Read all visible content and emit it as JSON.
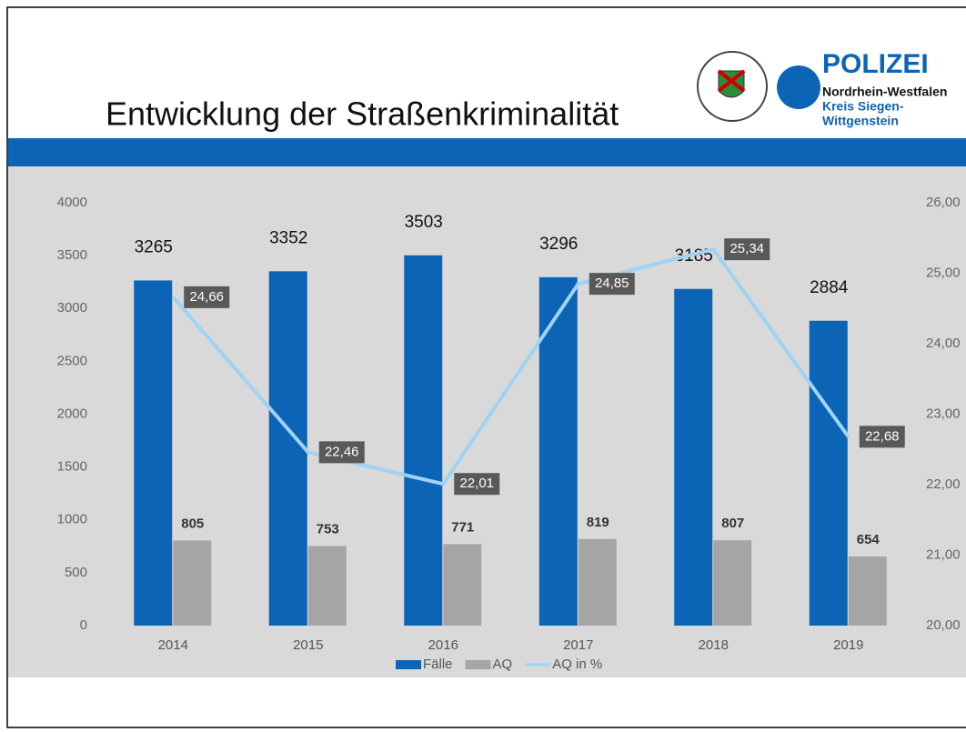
{
  "logo": {
    "name": "POLIZEI",
    "state": "Nordrhein-Westfalen",
    "district1": "Kreis Siegen-",
    "district2": "Wittgenstein"
  },
  "chart_data": {
    "type": "bar",
    "title": "Entwicklung der Straßenkriminalität",
    "categories": [
      "2014",
      "2015",
      "2016",
      "2017",
      "2018",
      "2019"
    ],
    "series": [
      {
        "name": "Fälle",
        "color": "#0b64b5",
        "values": [
          3265,
          3352,
          3503,
          3296,
          3185,
          2884
        ]
      },
      {
        "name": "AQ",
        "color": "#a5a5a5",
        "values": [
          805,
          753,
          771,
          819,
          807,
          654
        ]
      },
      {
        "name": "AQ in %",
        "color": "#9fd2f3",
        "type": "line",
        "axis": "y2",
        "values": [
          24.66,
          22.46,
          22.01,
          24.85,
          25.34,
          22.68
        ],
        "value_labels": [
          "24,66",
          "22,46",
          "22,01",
          "24,85",
          "25,34",
          "22,68"
        ]
      }
    ],
    "ylim": [
      0,
      4000
    ],
    "yticks": [
      0,
      500,
      1000,
      1500,
      2000,
      2500,
      3000,
      3500,
      4000
    ],
    "y2lim": [
      20,
      26
    ],
    "y2ticks": [
      {
        "value": 20,
        "label": "20,00"
      },
      {
        "value": 21,
        "label": "21,00"
      },
      {
        "value": 22,
        "label": "22,00"
      },
      {
        "value": 23,
        "label": "23,00"
      },
      {
        "value": 24,
        "label": "24,00"
      },
      {
        "value": 25,
        "label": "25,00"
      },
      {
        "value": 26,
        "label": "26,00"
      }
    ],
    "legend": "bottom"
  }
}
